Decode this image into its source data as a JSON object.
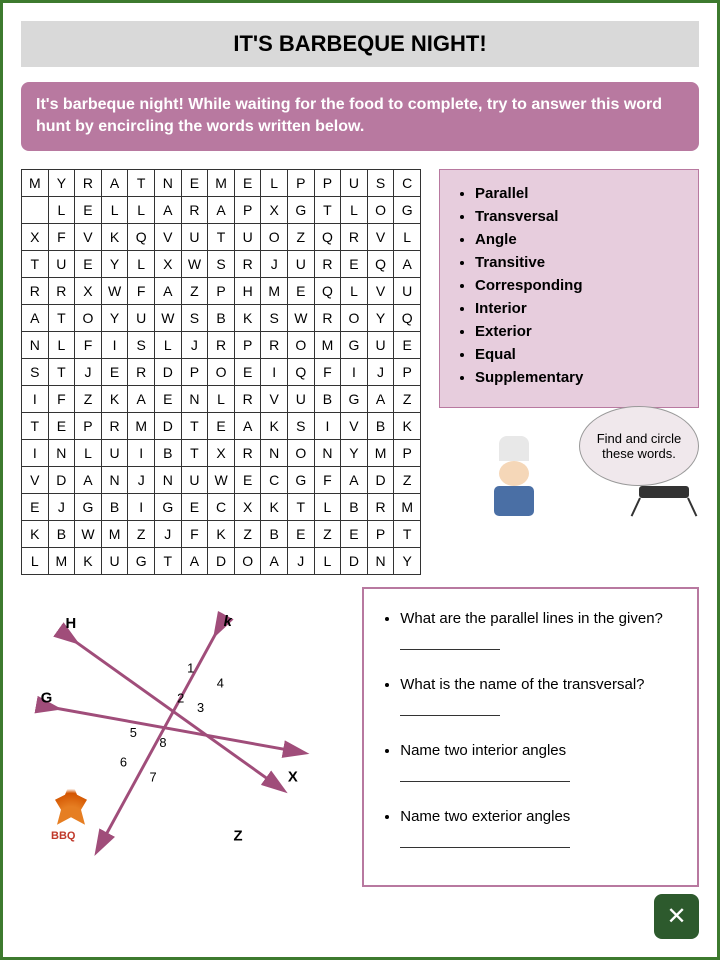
{
  "title": "IT'S BARBEQUE NIGHT!",
  "instruction": "It's barbeque night! While waiting for the food to complete, try to answer this word hunt by encircling the words written below.",
  "grid": [
    [
      "M",
      "Y",
      "R",
      "A",
      "T",
      "N",
      "E",
      "M",
      "E",
      "L",
      "P",
      "P",
      "U",
      "S",
      "C"
    ],
    [
      "",
      "L",
      "E",
      "L",
      "L",
      "A",
      "R",
      "A",
      "P",
      "X",
      "G",
      "T",
      "L",
      "O",
      "G"
    ],
    [
      "X",
      "F",
      "V",
      "K",
      "Q",
      "V",
      "U",
      "T",
      "U",
      "O",
      "Z",
      "Q",
      "R",
      "V",
      "L"
    ],
    [
      "T",
      "U",
      "E",
      "Y",
      "L",
      "X",
      "W",
      "S",
      "R",
      "J",
      "U",
      "R",
      "E",
      "Q",
      "A"
    ],
    [
      "R",
      "R",
      "X",
      "W",
      "F",
      "A",
      "Z",
      "P",
      "H",
      "M",
      "E",
      "Q",
      "L",
      "V",
      "U"
    ],
    [
      "A",
      "T",
      "O",
      "Y",
      "U",
      "W",
      "S",
      "B",
      "K",
      "S",
      "W",
      "R",
      "O",
      "Y",
      "Q"
    ],
    [
      "N",
      "L",
      "F",
      "I",
      "S",
      "L",
      "J",
      "R",
      "P",
      "R",
      "O",
      "M",
      "G",
      "U",
      "E"
    ],
    [
      "S",
      "T",
      "J",
      "E",
      "R",
      "D",
      "P",
      "O",
      "E",
      "I",
      "Q",
      "F",
      "I",
      "J",
      "P"
    ],
    [
      "I",
      "F",
      "Z",
      "K",
      "A",
      "E",
      "N",
      "L",
      "R",
      "V",
      "U",
      "B",
      "G",
      "A",
      "Z"
    ],
    [
      "T",
      "E",
      "P",
      "R",
      "M",
      "D",
      "T",
      "E",
      "A",
      "K",
      "S",
      "I",
      "V",
      "B",
      "K"
    ],
    [
      "I",
      "N",
      "L",
      "U",
      "I",
      "B",
      "T",
      "X",
      "R",
      "N",
      "O",
      "N",
      "Y",
      "M",
      "P"
    ],
    [
      "V",
      "D",
      "A",
      "N",
      "J",
      "N",
      "U",
      "W",
      "E",
      "C",
      "G",
      "F",
      "A",
      "D",
      "Z"
    ],
    [
      "E",
      "J",
      "G",
      "B",
      "I",
      "G",
      "E",
      "C",
      "X",
      "K",
      "T",
      "L",
      "B",
      "R",
      "M"
    ],
    [
      "K",
      "B",
      "W",
      "M",
      "Z",
      "J",
      "F",
      "K",
      "Z",
      "B",
      "E",
      "Z",
      "E",
      "P",
      "T"
    ],
    [
      "L",
      "M",
      "K",
      "U",
      "G",
      "T",
      "A",
      "D",
      "O",
      "A",
      "J",
      "L",
      "D",
      "N",
      "Y"
    ]
  ],
  "words": [
    "Parallel",
    "Transversal",
    "Angle",
    "Transitive",
    "Corresponding",
    "Interior",
    "Exterior",
    "Equal",
    "Supplementary"
  ],
  "bubble": "Find and circle these words.",
  "diagram": {
    "labels": {
      "H": "H",
      "k": "k",
      "G": "G",
      "X": "X",
      "Z": "Z"
    },
    "nums": [
      "1",
      "2",
      "3",
      "4",
      "5",
      "6",
      "7",
      "8"
    ],
    "line_color": "#a04d7a",
    "arrow_color": "#a04d7a"
  },
  "questions": [
    "What are the parallel lines in the given?",
    "What is the name of the transversal?",
    "Name two interior angles",
    "Name two exterior angles"
  ],
  "flame_label": "BBQ",
  "colors": {
    "border": "#3d7a2e",
    "title_bg": "#d9d9d9",
    "instr_bg": "#b879a0",
    "wordlist_bg": "#e7cddd",
    "badge_bg": "#2d5a2d"
  }
}
